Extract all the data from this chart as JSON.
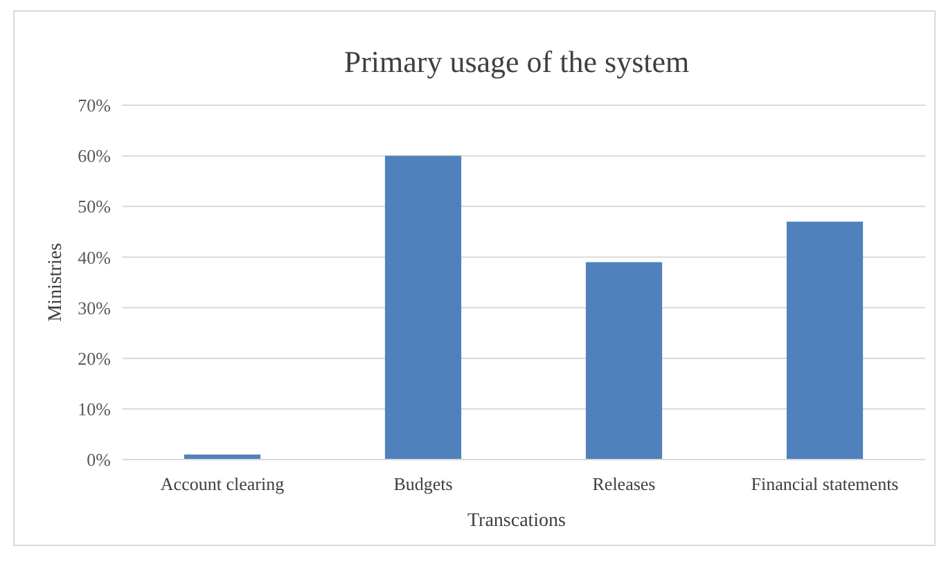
{
  "chart_data": {
    "type": "bar",
    "title": "Primary usage of the system",
    "xlabel": "Transcations",
    "ylabel": "Ministries",
    "categories": [
      "Account clearing",
      "Budgets",
      "Releases",
      "Financial statements"
    ],
    "values": [
      1,
      60,
      39,
      47
    ],
    "color": "#4f81bd",
    "ylim": [
      0,
      70
    ],
    "yticks": [
      {
        "value": 0,
        "label": "0%"
      },
      {
        "value": 10,
        "label": "10%"
      },
      {
        "value": 20,
        "label": "20%"
      },
      {
        "value": 30,
        "label": "30%"
      },
      {
        "value": 40,
        "label": "40%"
      },
      {
        "value": 50,
        "label": "50%"
      },
      {
        "value": 60,
        "label": "60%"
      },
      {
        "value": 70,
        "label": "70%"
      }
    ],
    "grid": "y"
  }
}
